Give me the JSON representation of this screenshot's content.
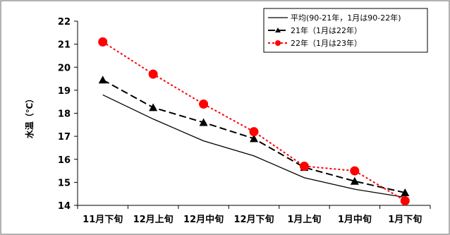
{
  "chart_data": {
    "type": "line",
    "categories": [
      "11月下旬",
      "12月上旬",
      "12月中旬",
      "12月下旬",
      "1月上旬",
      "1月中旬",
      "1月下旬"
    ],
    "ylabel": "水温（℃）",
    "ylim": [
      14,
      22
    ],
    "yticks": [
      14,
      15,
      16,
      17,
      18,
      19,
      20,
      21,
      22
    ],
    "grid": false,
    "legend_position": "top-right",
    "series": [
      {
        "name": "平均(90-21年，1月は90-22年)",
        "values": [
          18.8,
          17.75,
          16.8,
          16.15,
          15.2,
          14.7,
          14.35
        ],
        "color": "#000000",
        "line_style": "solid",
        "marker": "none"
      },
      {
        "name": "21年（1月は22年）",
        "values": [
          19.45,
          18.25,
          17.6,
          16.9,
          15.65,
          15.05,
          14.55
        ],
        "color": "#000000",
        "line_style": "dashed",
        "marker": "triangle"
      },
      {
        "name": "22年（1月は23年）",
        "values": [
          21.1,
          19.7,
          18.4,
          17.2,
          15.7,
          15.5,
          14.2
        ],
        "color": "#ff0000",
        "line_style": "dotted",
        "marker": "circle"
      }
    ]
  }
}
